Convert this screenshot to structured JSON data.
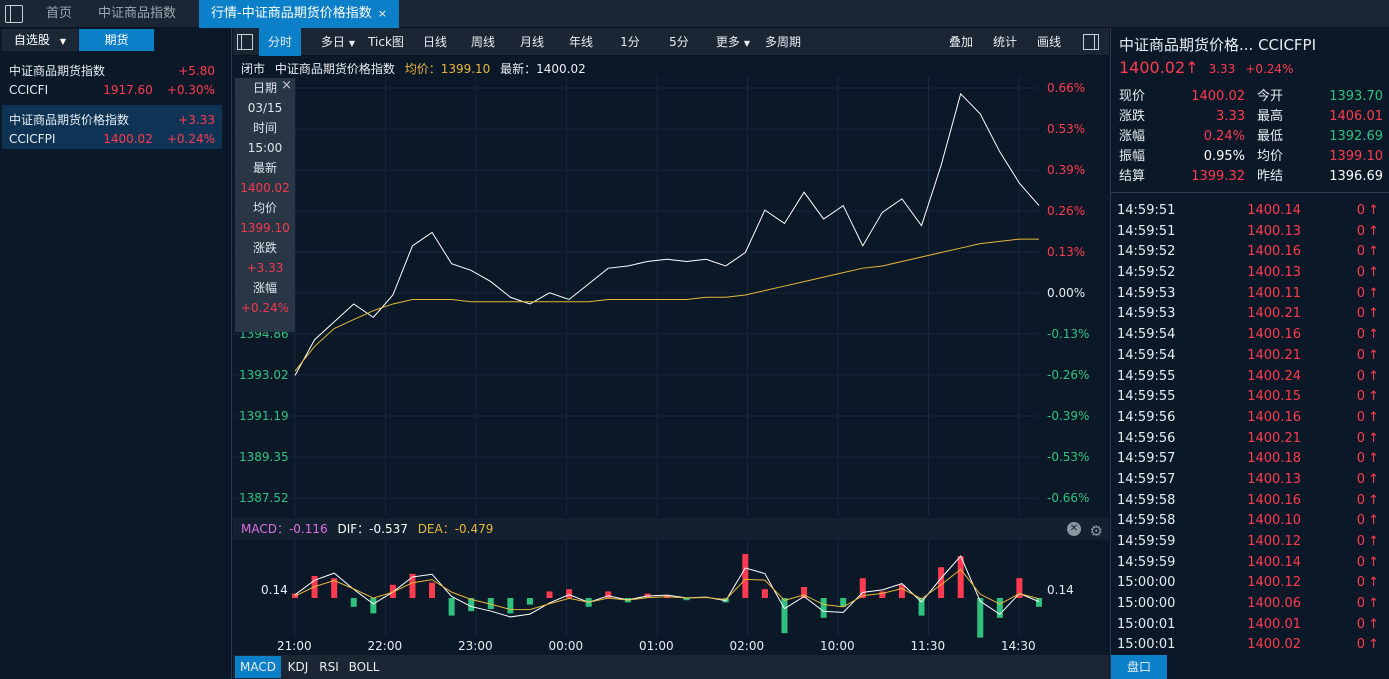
{
  "tabs": [
    {
      "label": "首页"
    },
    {
      "label": "中证商品指数"
    },
    {
      "label": "行情-中证商品期货价格指数"
    }
  ],
  "tab_close": "×",
  "left": {
    "tabs": [
      "自选股",
      "期货"
    ],
    "watchlist": [
      {
        "name": "中证商品期货指数",
        "change": "+5.80",
        "code": "CCICFI",
        "price": "1917.60",
        "pct": "+0.30%"
      },
      {
        "name": "中证商品期货价格指数",
        "change": "+3.33",
        "code": "CCICFPI",
        "price": "1400.02",
        "pct": "+0.24%"
      }
    ]
  },
  "toolbar": {
    "items": [
      "分时",
      "多日",
      "Tick图",
      "日线",
      "周线",
      "月线",
      "年线",
      "1分",
      "5分",
      "更多",
      "多周期"
    ],
    "right": [
      "叠加",
      "统计",
      "画线"
    ]
  },
  "info": {
    "status": "闭市",
    "name": "中证商品期货价格指数",
    "avg": "均价：1399.10",
    "latest": "最新：1400.02"
  },
  "tooltip": {
    "date_label": "日期",
    "date": "03/15",
    "time_label": "时间",
    "time": "15:00",
    "latest_label": "最新",
    "latest": "1400.02",
    "avg_label": "均价",
    "avg": "1399.10",
    "chg_label": "涨跌",
    "chg": "+3.33",
    "pct_label": "涨幅",
    "pct": "+0.24%",
    "close": "×"
  },
  "chart_data": {
    "type": "line",
    "left_ticks": [
      "1394.86",
      "1393.02",
      "1391.19",
      "1389.35",
      "1387.52"
    ],
    "right_ticks": [
      "0.66%",
      "0.53%",
      "0.39%",
      "0.26%",
      "0.13%",
      "0.00%",
      "-0.13%",
      "-0.26%",
      "-0.39%",
      "-0.53%",
      "-0.66%"
    ],
    "ylim": [
      1387.52,
      1405.86
    ],
    "prev_settle": 1396.69,
    "x_labels": [
      "21:00",
      "22:00",
      "23:00",
      "00:00",
      "01:00",
      "02:00",
      "10:00",
      "11:30",
      "14:30"
    ],
    "series": [
      {
        "color": "#ffffff",
        "values": [
          1393.0,
          1394.6,
          1395.4,
          1396.2,
          1395.6,
          1396.6,
          1398.8,
          1399.4,
          1398.0,
          1397.7,
          1397.2,
          1396.5,
          1396.2,
          1396.7,
          1396.4,
          1397.1,
          1397.8,
          1397.9,
          1398.1,
          1398.2,
          1398.1,
          1398.2,
          1397.9,
          1398.5,
          1400.4,
          1399.8,
          1401.2,
          1400.0,
          1400.6,
          1398.8,
          1400.3,
          1400.9,
          1399.7,
          1402.4,
          1405.6,
          1404.7,
          1403.0,
          1401.6,
          1400.6
        ]
      },
      {
        "color": "#e8b83a",
        "values": [
          1393.2,
          1394.3,
          1395.1,
          1395.5,
          1395.9,
          1396.2,
          1396.4,
          1396.4,
          1396.4,
          1396.3,
          1396.3,
          1396.3,
          1396.3,
          1396.3,
          1396.3,
          1396.3,
          1396.4,
          1396.4,
          1396.4,
          1396.4,
          1396.4,
          1396.5,
          1396.5,
          1396.6,
          1396.8,
          1397.0,
          1397.2,
          1397.4,
          1397.6,
          1397.8,
          1397.9,
          1398.1,
          1398.3,
          1398.5,
          1398.7,
          1398.9,
          1399.0,
          1399.1,
          1399.1
        ]
      }
    ],
    "macd": {
      "label": "MACD：-0.116",
      "dif": "DIF：-0.537",
      "dea": "DEA：-0.479",
      "tick": "0.14",
      "values": [
        0.2,
        1.0,
        0.9,
        -0.4,
        -0.7,
        0.6,
        1.1,
        0.7,
        -0.8,
        -0.6,
        -0.5,
        -0.7,
        -0.3,
        0.3,
        0.4,
        -0.4,
        0.3,
        -0.2,
        0.2,
        0.1,
        -0.1,
        0.05,
        -0.2,
        2.0,
        0.4,
        -1.6,
        0.5,
        -0.9,
        -0.4,
        0.9,
        0.3,
        0.6,
        -0.8,
        1.4,
        1.9,
        -1.8,
        -0.9,
        0.9,
        -0.4
      ]
    },
    "tabs": [
      "MACD",
      "KDJ",
      "RSI",
      "BOLL"
    ]
  },
  "right": {
    "title": "中证商品期货价格... CCICFPI",
    "price": "1400.02",
    "arrow": "↑",
    "chg": "3.33",
    "pct": "+0.24%",
    "stats": [
      {
        "l1": "现价",
        "v1": "1400.02",
        "c1": "red",
        "l2": "今开",
        "v2": "1393.70",
        "c2": "green"
      },
      {
        "l1": "涨跌",
        "v1": "3.33",
        "c1": "red",
        "l2": "最高",
        "v2": "1406.01",
        "c2": "red"
      },
      {
        "l1": "涨幅",
        "v1": "0.24%",
        "c1": "red",
        "l2": "最低",
        "v2": "1392.69",
        "c2": "green"
      },
      {
        "l1": "振幅",
        "v1": "0.95%",
        "c1": "white",
        "l2": "均价",
        "v2": "1399.10",
        "c2": "red"
      },
      {
        "l1": "结算",
        "v1": "1399.32",
        "c1": "red",
        "l2": "昨结",
        "v2": "1396.69",
        "c2": "white"
      }
    ],
    "ticks": [
      [
        "14:59:51",
        "1400.14",
        "0"
      ],
      [
        "14:59:51",
        "1400.13",
        "0"
      ],
      [
        "14:59:52",
        "1400.16",
        "0"
      ],
      [
        "14:59:52",
        "1400.13",
        "0"
      ],
      [
        "14:59:53",
        "1400.11",
        "0"
      ],
      [
        "14:59:53",
        "1400.21",
        "0"
      ],
      [
        "14:59:54",
        "1400.16",
        "0"
      ],
      [
        "14:59:54",
        "1400.21",
        "0"
      ],
      [
        "14:59:55",
        "1400.24",
        "0"
      ],
      [
        "14:59:55",
        "1400.15",
        "0"
      ],
      [
        "14:59:56",
        "1400.16",
        "0"
      ],
      [
        "14:59:56",
        "1400.21",
        "0"
      ],
      [
        "14:59:57",
        "1400.18",
        "0"
      ],
      [
        "14:59:57",
        "1400.13",
        "0"
      ],
      [
        "14:59:58",
        "1400.16",
        "0"
      ],
      [
        "14:59:58",
        "1400.10",
        "0"
      ],
      [
        "14:59:59",
        "1400.12",
        "0"
      ],
      [
        "14:59:59",
        "1400.14",
        "0"
      ],
      [
        "15:00:00",
        "1400.12",
        "0"
      ],
      [
        "15:00:00",
        "1400.06",
        "0"
      ],
      [
        "15:00:01",
        "1400.01",
        "0"
      ],
      [
        "15:00:01",
        "1400.02",
        "0"
      ]
    ],
    "tick_arrow": "↑",
    "pankou": "盘口"
  }
}
